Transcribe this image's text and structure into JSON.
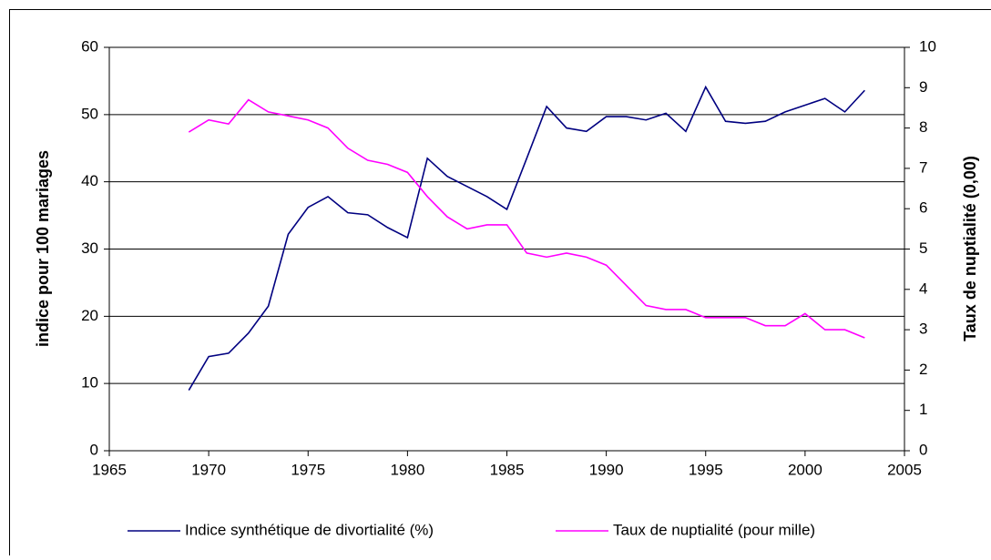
{
  "chart_data": {
    "type": "line",
    "x": [
      1969,
      1970,
      1971,
      1972,
      1973,
      1974,
      1975,
      1976,
      1977,
      1978,
      1979,
      1980,
      1981,
      1982,
      1983,
      1984,
      1985,
      1986,
      1987,
      1988,
      1989,
      1990,
      1991,
      1992,
      1993,
      1994,
      1995,
      1996,
      1997,
      1998,
      1999,
      2000,
      2001,
      2002,
      2003
    ],
    "series": [
      {
        "name": "Indice synthétique de divortialité (%)",
        "color": "#000080",
        "values": [
          9,
          14,
          14.5,
          17.5,
          21.5,
          32.2,
          36.2,
          37.8,
          35.4,
          35.1,
          33.2,
          31.7,
          43.5,
          40.8,
          39.3,
          37.8,
          35.9,
          43.5,
          51.2,
          48,
          47.5,
          49.7,
          49.7,
          49.2,
          50.2,
          47.5,
          54.1,
          49,
          48.7,
          49,
          50.4,
          51.4,
          52.4,
          50.4,
          53.6
        ]
      },
      {
        "name": "Taux de nuptialité (pour mille)",
        "color": "#ff00ff",
        "axis": "y2",
        "values": [
          7.9,
          8.2,
          8.1,
          8.7,
          8.4,
          8.3,
          8.2,
          8.0,
          7.5,
          7.2,
          7.1,
          6.9,
          6.3,
          5.8,
          5.5,
          5.6,
          5.6,
          4.9,
          4.8,
          4.9,
          4.8,
          4.6,
          4.1,
          3.6,
          3.5,
          3.5,
          3.3,
          3.3,
          3.3,
          3.1,
          3.1,
          3.4,
          3.0,
          3.0,
          2.8
        ]
      }
    ],
    "ylabel": "indice pour 100 mariages",
    "y2label": "Taux de nuptialité (0,00)",
    "xlim": [
      1965,
      2005
    ],
    "xticks": [
      1965,
      1970,
      1975,
      1980,
      1985,
      1990,
      1995,
      2000,
      2005
    ],
    "ylim": [
      0,
      60
    ],
    "yticks": [
      0,
      10,
      20,
      30,
      40,
      50,
      60
    ],
    "y2lim": [
      0,
      10
    ],
    "y2ticks": [
      0,
      1,
      2,
      3,
      4,
      5,
      6,
      7,
      8,
      9,
      10
    ],
    "grid": true,
    "legend": "bottom"
  }
}
